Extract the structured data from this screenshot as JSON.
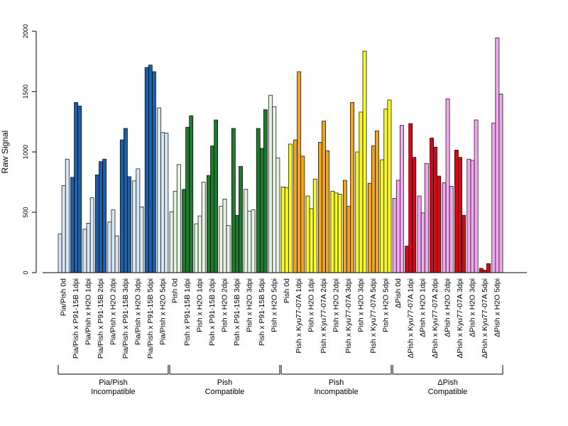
{
  "chart_data": {
    "type": "bar",
    "ylabel": "Raw Signal",
    "xlabel": "",
    "ylim": [
      0,
      2000
    ],
    "yticks": [
      0,
      500,
      1000,
      1500,
      2000
    ],
    "grid": false,
    "categories": [
      "Pia/Pish 0d",
      "Pia/Pish x P91-15B 1dpi",
      "Pia/Pish x H2O 1dpi",
      "Pia/Pish x P91-15B 2dpi",
      "Pia/Pish x H2O 2dpi",
      "Pia/Pish x P91-15B 3dpi",
      "Pia/Pish x H2O 3dpi",
      "Pia/Pish x P91-15B 5dpi",
      "Pia/Pish x H2O 5dpi",
      "Pish 0d",
      "Pish x P91-15B 1dpi",
      "Pish x H2O 1dpi",
      "Pish x P91-15B 2dpi",
      "Pish x H2O 2dpi",
      "Pish x P91-15B 3dpi",
      "Pish x H2O 3dpi",
      "Pish x P91-15B 5dpi",
      "Pish x H2O 5dpi",
      "Pish 0d",
      "Pish x Kyu77-07A 1dpi",
      "Pish x H2O 1dpi",
      "Pish x Kyu77-07A 2dpi",
      "Pish x H2O 2dpi",
      "Pish x Kyu77-07A 3dpi",
      "Pish x H2O 3dpi",
      "Pish x Kyu77-07A 5dpi",
      "Pish x H2O 5dpi",
      "ΔPish 0d",
      "ΔPish x Kyu77-07A 1dpi",
      "ΔPish x H2O 1dpi",
      "ΔPish x Kyu77-07A 2dpi",
      "ΔPish x H2O 2dpi",
      "ΔPish x Kyu77-07A 3dpi",
      "ΔPish x H2O 3dpi",
      "ΔPish x Kyu77-07A 5dpi",
      "ΔPish x H2O 5dpi"
    ],
    "values": [
      [
        320,
        720,
        940
      ],
      [
        790,
        1410,
        1380
      ],
      [
        360,
        410,
        620
      ],
      [
        810,
        920,
        940
      ],
      [
        420,
        520,
        305
      ],
      [
        1100,
        1195,
        795
      ],
      [
        760,
        860,
        545
      ],
      [
        1700,
        1720,
        1665
      ],
      [
        1365,
        1160,
        1155
      ],
      [
        505,
        675,
        895
      ],
      [
        690,
        1205,
        1300
      ],
      [
        405,
        470,
        750
      ],
      [
        805,
        1050,
        1265
      ],
      [
        550,
        610,
        390
      ],
      [
        1195,
        475,
        880
      ],
      [
        690,
        510,
        520
      ],
      [
        1195,
        1030,
        1350
      ],
      [
        1470,
        1375,
        950
      ],
      [
        710,
        705,
        1065
      ],
      [
        1100,
        1665,
        965
      ],
      [
        635,
        530,
        775
      ],
      [
        1080,
        1255,
        1010
      ],
      [
        675,
        660,
        650
      ],
      [
        765,
        550,
        1410
      ],
      [
        1000,
        1330,
        1835
      ],
      [
        740,
        1050,
        1175
      ],
      [
        935,
        1355,
        1430
      ],
      [
        615,
        765,
        1220
      ],
      [
        220,
        1235,
        955
      ],
      [
        635,
        495,
        905
      ],
      [
        1115,
        1040,
        800
      ],
      [
        745,
        1440,
        715
      ],
      [
        1015,
        955,
        475
      ],
      [
        940,
        930,
        1265
      ],
      [
        35,
        20,
        75
      ],
      [
        1240,
        1945,
        1480
      ]
    ],
    "group_colors": {
      "Pia/Pish Incompatible": {
        "treated": "#1f5fa8",
        "control": "#d6e6f4"
      },
      "Pish Compatible": {
        "treated": "#1e7a2e",
        "control": "#e6f2e2"
      },
      "Pish Incompatible": {
        "treated": "#f0a51e",
        "control": "#f6f62a"
      },
      "ΔPish Compatible": {
        "treated": "#d00a1a",
        "control": "#f2a8ee"
      }
    },
    "groups": [
      {
        "line1": "Pia/Pish",
        "line2": "Incompatible",
        "start": 0,
        "end": 8
      },
      {
        "line1": "Pish",
        "line2": "Compatible",
        "start": 9,
        "end": 17
      },
      {
        "line1": "Pish",
        "line2": "Incompatible",
        "start": 18,
        "end": 26
      },
      {
        "line1": "ΔPish",
        "line2": "Compatible",
        "start": 27,
        "end": 35
      }
    ]
  }
}
